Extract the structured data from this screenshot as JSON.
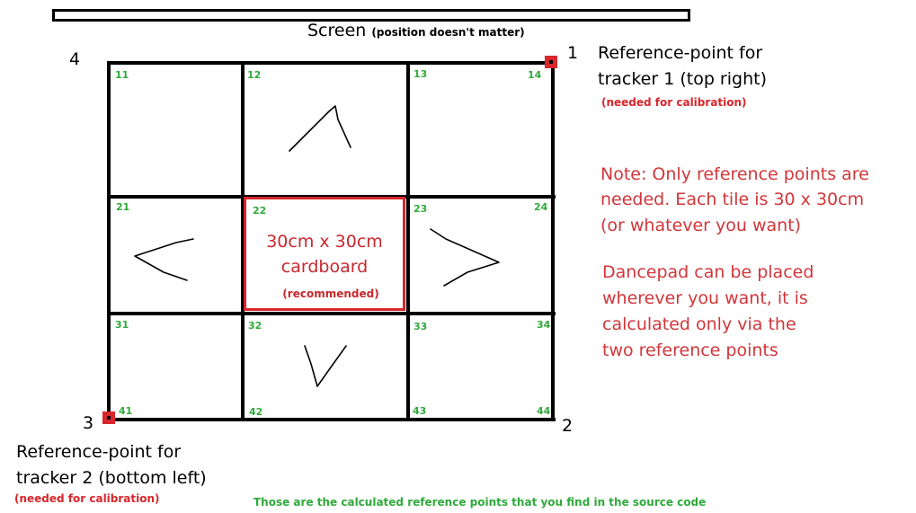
{
  "screen": {
    "label": "Screen",
    "note": "(position doesn't matter)"
  },
  "corners": [
    "1",
    "2",
    "3",
    "4"
  ],
  "tiles": [
    "11",
    "12",
    "13",
    "14",
    "21",
    "22",
    "23",
    "24",
    "31",
    "32",
    "33",
    "34",
    "41",
    "42",
    "43",
    "44"
  ],
  "center_tile": {
    "line1": "30cm x 30cm",
    "line2": "cardboard",
    "note": "(recommended)"
  },
  "reference_point_1": {
    "line1": "Reference-point for",
    "line2": "tracker 1 (top right)",
    "calibration": "(needed for calibration)"
  },
  "reference_point_2": {
    "line1": "Reference-point for",
    "line2": "tracker 2 (bottom left)",
    "calibration": "(needed for calibration)"
  },
  "notes": {
    "note1_line1": "Note:  Only reference points are",
    "note1_line2": "needed. Each tile is 30 x 30cm",
    "note1_line3": "(or whatever you want)",
    "note2_line1": "Dancepad can be placed",
    "note2_line2": "wherever you want, it is",
    "note2_line3": "calculated only via the",
    "note2_line4": "two reference points"
  },
  "footer": "Those are the calculated reference points that you find in the source code",
  "colors": {
    "grid": "#000000",
    "marker": "#d9262b",
    "tile_number": "#2faa3a",
    "note_text": "#d2363a"
  },
  "arrows": [
    "up-arrow",
    "left-arrow",
    "right-arrow",
    "down-arrow"
  ]
}
